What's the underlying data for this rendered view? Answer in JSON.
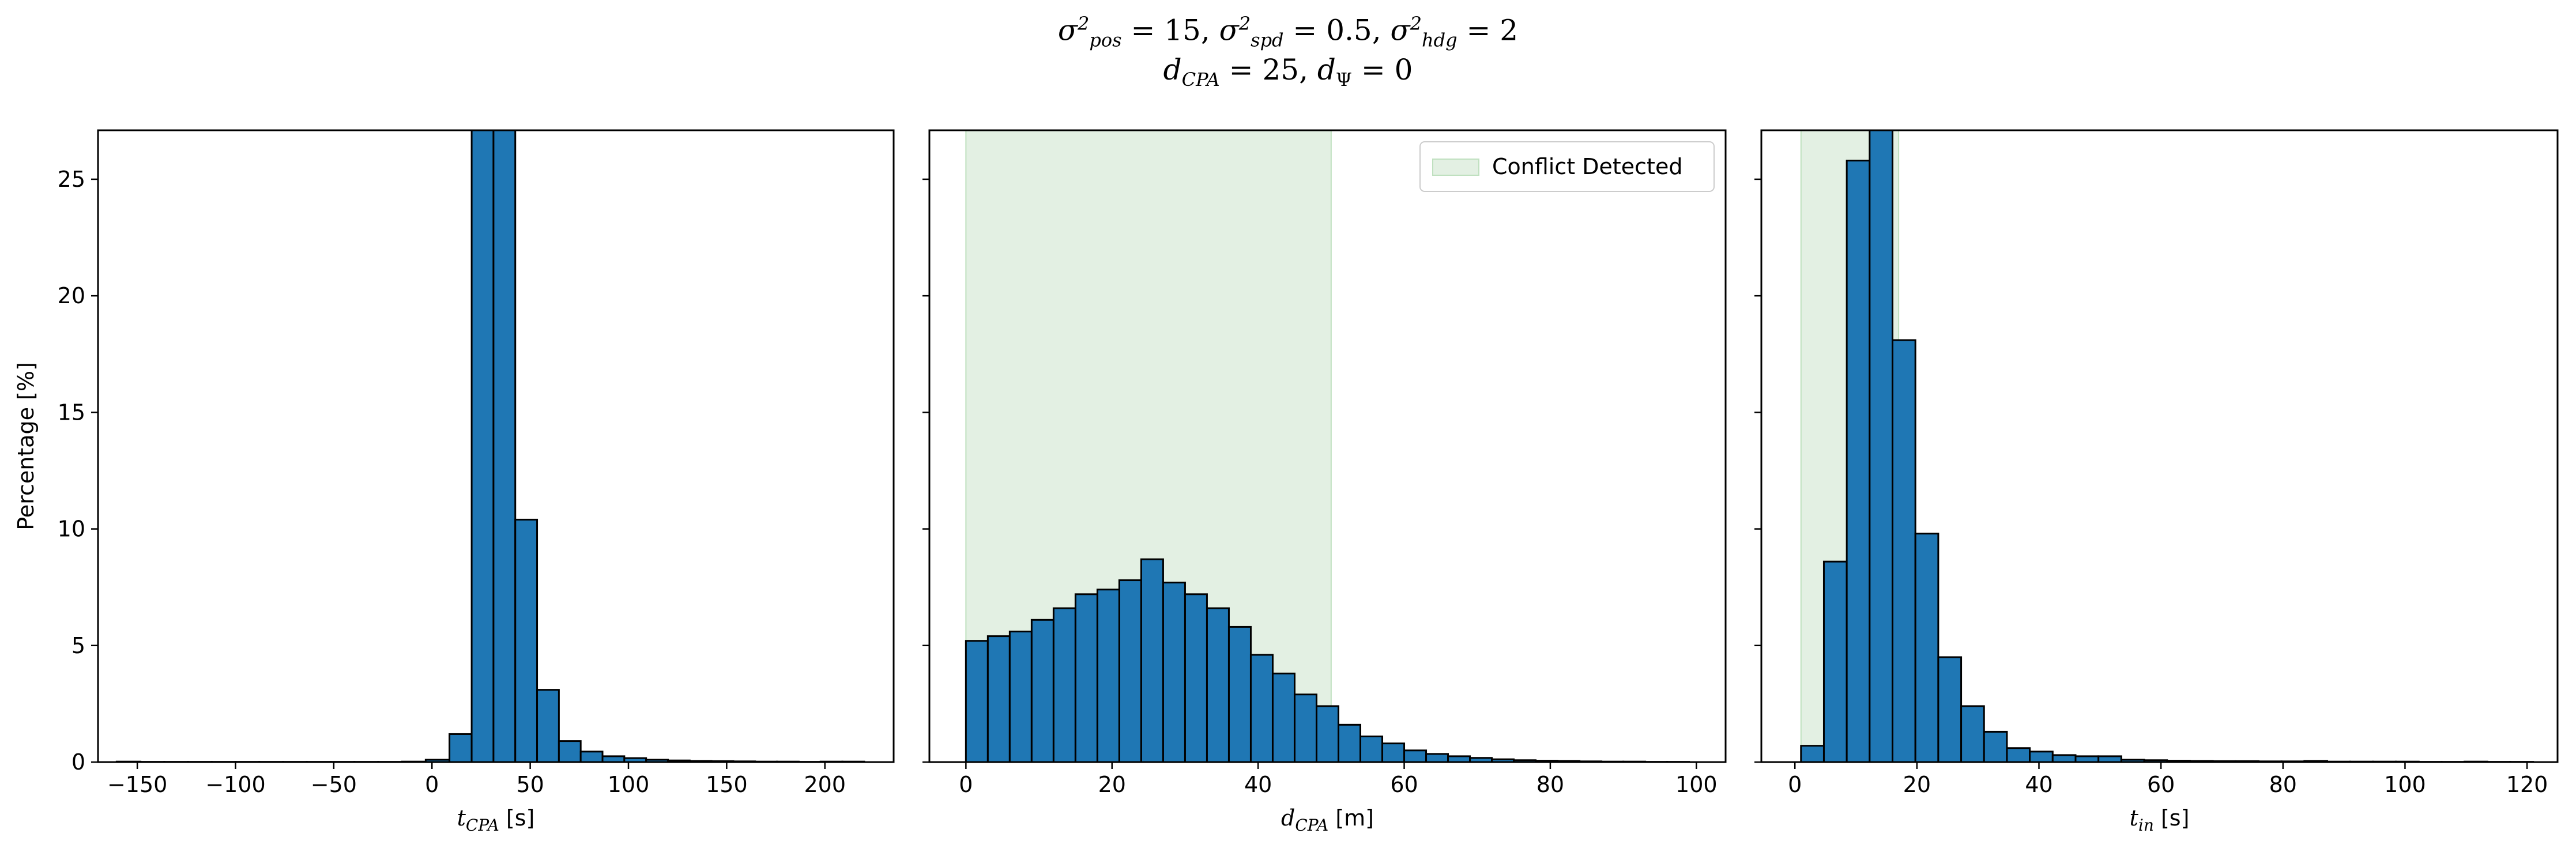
{
  "title": {
    "line1": "σ²pos = 15, σ²spd = 0.5, σ²hdg = 2",
    "line2": "dCPA = 25, dΨ = 0"
  },
  "colors": {
    "bar_fill": "#1f77b4",
    "bar_edge": "#000000",
    "conflict_fill": "#e3f0e3",
    "conflict_edge": "#bfe0bf"
  },
  "chart_data": [
    {
      "type": "bar",
      "panel": "left",
      "xlabel": "tCPA [s]",
      "ylabel": "Percentage [%]",
      "xlim": [
        -170,
        235
      ],
      "ylim": [
        0,
        27.1
      ],
      "xticks": [
        -150,
        -100,
        -50,
        0,
        50,
        100,
        150,
        200
      ],
      "xtick_labels": [
        "−150",
        "−100",
        "−50",
        "0",
        "50",
        "100",
        "150",
        "200"
      ],
      "yticks": [
        0,
        5,
        10,
        15,
        20,
        25
      ],
      "ytick_labels": [
        "0",
        "5",
        "10",
        "15",
        "20",
        "25"
      ],
      "bins": [
        [
          -160.5,
          -148.4,
          0.02
        ],
        [
          -148.4,
          -136.3,
          0.01
        ],
        [
          -136.3,
          -124.2,
          0.01
        ],
        [
          -124.2,
          -112.1,
          0.01
        ],
        [
          -112.1,
          -100.0,
          0.01
        ],
        [
          -100.0,
          -87.9,
          0.01
        ],
        [
          -87.9,
          -75.8,
          0.01
        ],
        [
          -75.8,
          -63.7,
          0.01
        ],
        [
          -63.7,
          -51.6,
          0.01
        ],
        [
          -51.6,
          -39.5,
          0.01
        ],
        [
          -39.5,
          -27.4,
          0.01
        ],
        [
          -27.4,
          -15.3,
          0.01
        ],
        [
          -15.3,
          -3.2,
          0.02
        ],
        [
          -3.2,
          8.9,
          0.1
        ],
        [
          8.9,
          20.2,
          1.2
        ],
        [
          20.2,
          31.3,
          27.1
        ],
        [
          31.3,
          42.4,
          27.1
        ],
        [
          42.4,
          53.5,
          10.4
        ],
        [
          53.5,
          64.6,
          3.1
        ],
        [
          64.6,
          75.7,
          0.9
        ],
        [
          75.7,
          86.8,
          0.45
        ],
        [
          86.8,
          97.9,
          0.25
        ],
        [
          97.9,
          109.0,
          0.17
        ],
        [
          109.0,
          120.1,
          0.1
        ],
        [
          120.1,
          131.2,
          0.07
        ],
        [
          131.2,
          142.3,
          0.05
        ],
        [
          142.3,
          153.4,
          0.04
        ],
        [
          153.4,
          164.5,
          0.03
        ],
        [
          164.5,
          175.6,
          0.02
        ],
        [
          175.6,
          186.7,
          0.02
        ],
        [
          186.7,
          197.8,
          0.01
        ],
        [
          197.8,
          208.9,
          0.02
        ],
        [
          208.9,
          220.0,
          0.02
        ]
      ]
    },
    {
      "type": "bar",
      "panel": "middle",
      "xlabel": "dCPA [m]",
      "xlim": [
        -5,
        104
      ],
      "ylim": [
        0,
        27.1
      ],
      "xticks": [
        0,
        20,
        40,
        60,
        80,
        100
      ],
      "xtick_labels": [
        "0",
        "20",
        "40",
        "60",
        "80",
        "100"
      ],
      "yticks": [
        0,
        5,
        10,
        15,
        20,
        25
      ],
      "shaded_region": [
        0,
        50
      ],
      "legend": {
        "label": "Conflict Detected",
        "position": "top-right"
      },
      "bins": [
        [
          0,
          3,
          5.2
        ],
        [
          3,
          6,
          5.4
        ],
        [
          6,
          9,
          5.6
        ],
        [
          9,
          12,
          6.1
        ],
        [
          12,
          15,
          6.6
        ],
        [
          15,
          18,
          7.2
        ],
        [
          18,
          21,
          7.4
        ],
        [
          21,
          24,
          7.8
        ],
        [
          24,
          27,
          8.7
        ],
        [
          27,
          30,
          7.7
        ],
        [
          30,
          33,
          7.2
        ],
        [
          33,
          36,
          6.6
        ],
        [
          36,
          39,
          5.8
        ],
        [
          39,
          42,
          4.6
        ],
        [
          42,
          45,
          3.8
        ],
        [
          45,
          48,
          2.9
        ],
        [
          48,
          51,
          2.4
        ],
        [
          51,
          54,
          1.6
        ],
        [
          54,
          57,
          1.1
        ],
        [
          57,
          60,
          0.8
        ],
        [
          60,
          63,
          0.5
        ],
        [
          63,
          66,
          0.35
        ],
        [
          66,
          69,
          0.25
        ],
        [
          69,
          72,
          0.18
        ],
        [
          72,
          75,
          0.12
        ],
        [
          75,
          78,
          0.08
        ],
        [
          78,
          81,
          0.06
        ],
        [
          81,
          84,
          0.05
        ],
        [
          84,
          87,
          0.03
        ],
        [
          87,
          90,
          0.02
        ],
        [
          90,
          93,
          0.02
        ],
        [
          93,
          96,
          0.01
        ],
        [
          96,
          99,
          0.01
        ]
      ]
    },
    {
      "type": "bar",
      "panel": "right",
      "xlabel": "tin [s]",
      "xlim": [
        -5.5,
        125
      ],
      "ylim": [
        0,
        27.1
      ],
      "xticks": [
        0,
        20,
        40,
        60,
        80,
        100,
        120
      ],
      "xtick_labels": [
        "0",
        "20",
        "40",
        "60",
        "80",
        "100",
        "120"
      ],
      "yticks": [
        0,
        5,
        10,
        15,
        20,
        25
      ],
      "shaded_region": [
        1,
        17
      ],
      "bins": [
        [
          1,
          4.75,
          0.7
        ],
        [
          4.75,
          8.5,
          8.6
        ],
        [
          8.5,
          12.25,
          25.8
        ],
        [
          12.25,
          16,
          27.1
        ],
        [
          16,
          19.75,
          18.1
        ],
        [
          19.75,
          23.5,
          9.8
        ],
        [
          23.5,
          27.25,
          4.5
        ],
        [
          27.25,
          31,
          2.4
        ],
        [
          31,
          34.75,
          1.3
        ],
        [
          34.75,
          38.5,
          0.6
        ],
        [
          38.5,
          42.25,
          0.45
        ],
        [
          42.25,
          46,
          0.3
        ],
        [
          46,
          49.75,
          0.25
        ],
        [
          49.75,
          53.5,
          0.25
        ],
        [
          53.5,
          57.25,
          0.1
        ],
        [
          57.25,
          61,
          0.08
        ],
        [
          61,
          64.75,
          0.06
        ],
        [
          64.75,
          68.5,
          0.05
        ],
        [
          68.5,
          72.25,
          0.04
        ],
        [
          72.25,
          76,
          0.04
        ],
        [
          76,
          79.75,
          0.03
        ],
        [
          79.75,
          83.5,
          0.03
        ],
        [
          83.5,
          87.25,
          0.05
        ],
        [
          87.25,
          91,
          0.02
        ],
        [
          91,
          94.75,
          0.02
        ],
        [
          94.75,
          98.5,
          0.02
        ],
        [
          98.5,
          102.25,
          0.02
        ],
        [
          102.25,
          106,
          0.01
        ],
        [
          106,
          109.75,
          0.01
        ],
        [
          109.75,
          113.5,
          0.02
        ],
        [
          113.5,
          117.25,
          0.01
        ],
        [
          117.25,
          121,
          0.01
        ]
      ]
    }
  ]
}
